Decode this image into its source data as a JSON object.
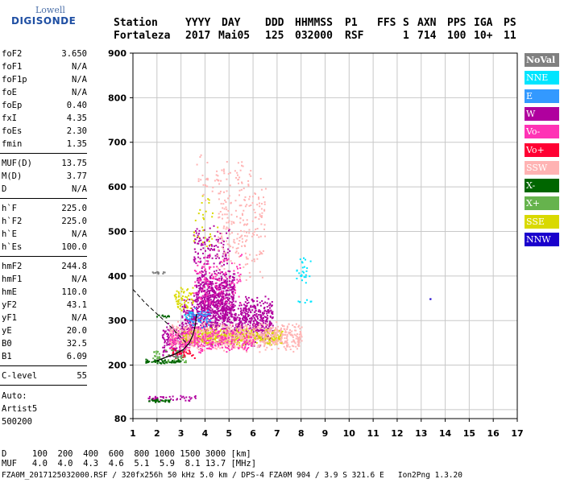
{
  "brand": {
    "line1": "Lowell",
    "line2": "DIGISONDE"
  },
  "header": {
    "labels": [
      "Station",
      "YYYY",
      "DAY",
      "DDD",
      "HHMMSS",
      "P1",
      "FFS",
      "S",
      "AXN",
      "PPS",
      "IGA",
      "PS"
    ],
    "values": [
      "Fortaleza",
      "2017",
      "Mai05",
      "125",
      "032000",
      "RSF",
      "",
      "1",
      "714",
      "100",
      "10+",
      "11"
    ]
  },
  "params": [
    {
      "k": "foF2",
      "v": "3.650"
    },
    {
      "k": "foF1",
      "v": "N/A"
    },
    {
      "k": "foF1p",
      "v": "N/A"
    },
    {
      "k": "foE",
      "v": "N/A"
    },
    {
      "k": "foEp",
      "v": "0.40"
    },
    {
      "k": "fxI",
      "v": "4.35"
    },
    {
      "k": "foEs",
      "v": "2.30"
    },
    {
      "k": "fmin",
      "v": "1.35"
    },
    {
      "k": "MUF(D)",
      "v": "13.75"
    },
    {
      "k": "M(D)",
      "v": "3.77"
    },
    {
      "k": "D",
      "v": "N/A"
    },
    {
      "k": "h`F",
      "v": "225.0"
    },
    {
      "k": "h`F2",
      "v": "225.0"
    },
    {
      "k": "h`E",
      "v": "N/A"
    },
    {
      "k": "h`Es",
      "v": "100.0"
    },
    {
      "k": "hmF2",
      "v": "244.8"
    },
    {
      "k": "hmF1",
      "v": "N/A"
    },
    {
      "k": "hmE",
      "v": "110.0"
    },
    {
      "k": "yF2",
      "v": "43.1"
    },
    {
      "k": "yF1",
      "v": "N/A"
    },
    {
      "k": "yE",
      "v": "20.0"
    },
    {
      "k": "B0",
      "v": "32.5"
    },
    {
      "k": "B1",
      "v": "6.09"
    },
    {
      "k": "C-level",
      "v": "55"
    }
  ],
  "auto": [
    "Auto:",
    "Artist5",
    "500200"
  ],
  "legend": [
    {
      "label": "NoVal",
      "bg": "#808080",
      "fg": "#ffffff"
    },
    {
      "label": "NNE",
      "bg": "#00e5ff",
      "fg": "#ffffff"
    },
    {
      "label": "E",
      "bg": "#3399ff",
      "fg": "#ffffff"
    },
    {
      "label": "W",
      "bg": "#b0009e",
      "fg": "#ffffff"
    },
    {
      "label": "Vo-",
      "bg": "#ff33b5",
      "fg": "#ffffff"
    },
    {
      "label": "Vo+",
      "bg": "#ff0033",
      "fg": "#ffffff"
    },
    {
      "label": "SSW",
      "bg": "#ffb3b3",
      "fg": "#ffffff"
    },
    {
      "label": "X-",
      "bg": "#006600",
      "fg": "#ffffff"
    },
    {
      "label": "X+",
      "bg": "#66b34d",
      "fg": "#ffffff"
    },
    {
      "label": "SSE",
      "bg": "#d9d900",
      "fg": "#ffffff"
    },
    {
      "label": "NNW",
      "bg": "#1a00cc",
      "fg": "#ffffff"
    }
  ],
  "bottom": {
    "d_row": "D     100  200  400  600  800 1000 1500 3000 [km]",
    "muf_row": "MUF   4.0  4.0  4.3  4.6  5.1  5.9  8.1 13.7 [MHz]",
    "footer": "FZA0M_2017125032000.RSF / 320fx256h 50 kHz 5.0 km / DPS-4 FZA0M 904 / 3.9 S 321.6 E   Ion2Png 1.3.20"
  },
  "chart_data": {
    "type": "scatter",
    "title": "",
    "xlabel": "",
    "ylabel": "",
    "xlim": [
      1,
      17
    ],
    "ylim": [
      80,
      900
    ],
    "x_ticks": [
      1,
      2,
      3,
      4,
      5,
      6,
      7,
      8,
      9,
      10,
      11,
      12,
      13,
      14,
      15,
      16,
      17
    ],
    "y_ticks": [
      80,
      200,
      300,
      400,
      500,
      600,
      700,
      800,
      900
    ],
    "grid": true,
    "legend_position": "right",
    "series": [
      {
        "name": "W",
        "color": "#b0009e",
        "clusters": [
          {
            "x": [
              3.0,
              6.8
            ],
            "y": [
              240,
              360
            ],
            "n": 900
          },
          {
            "x": [
              3.6,
              5.2
            ],
            "y": [
              300,
              420
            ],
            "n": 500
          },
          {
            "x": [
              2.2,
              3.2
            ],
            "y": [
              215,
              300
            ],
            "n": 150
          },
          {
            "x": [
              3.5,
              5.0
            ],
            "y": [
              400,
              520
            ],
            "n": 120
          },
          {
            "x": [
              1.6,
              3.6
            ],
            "y": [
              120,
              135
            ],
            "n": 40
          }
        ]
      },
      {
        "name": "SSE",
        "color": "#d9d900",
        "clusters": [
          {
            "x": [
              3.0,
              7.2
            ],
            "y": [
              245,
              285
            ],
            "n": 500
          },
          {
            "x": [
              2.7,
              3.5
            ],
            "y": [
              320,
              380
            ],
            "n": 60
          },
          {
            "x": [
              3.5,
              4.5
            ],
            "y": [
              450,
              600
            ],
            "n": 30
          }
        ]
      },
      {
        "name": "SSW",
        "color": "#ffb3b3",
        "clusters": [
          {
            "x": [
              2.5,
              8.0
            ],
            "y": [
              230,
              300
            ],
            "n": 700
          },
          {
            "x": [
              4.5,
              6.5
            ],
            "y": [
              380,
              640
            ],
            "n": 200
          },
          {
            "x": [
              3.5,
              6.0
            ],
            "y": [
              560,
              680
            ],
            "n": 60
          }
        ]
      },
      {
        "name": "Vo-",
        "color": "#ff33b5",
        "clusters": [
          {
            "x": [
              2.5,
              6.0
            ],
            "y": [
              225,
              290
            ],
            "n": 250
          },
          {
            "x": [
              3.5,
              5.5
            ],
            "y": [
              320,
              460
            ],
            "n": 120
          }
        ]
      },
      {
        "name": "E",
        "color": "#3399ff",
        "clusters": [
          {
            "x": [
              3.3,
              4.2
            ],
            "y": [
              280,
              335
            ],
            "n": 60
          }
        ]
      },
      {
        "name": "NNE",
        "color": "#00e5ff",
        "clusters": [
          {
            "x": [
              7.7,
              8.4
            ],
            "y": [
              380,
              450
            ],
            "n": 25
          },
          {
            "x": [
              7.5,
              8.5
            ],
            "y": [
              340,
              350
            ],
            "n": 8
          },
          {
            "x": [
              3.1,
              3.5
            ],
            "y": [
              300,
              330
            ],
            "n": 8
          }
        ]
      },
      {
        "name": "X-",
        "color": "#006600",
        "clusters": [
          {
            "x": [
              1.5,
              3.0
            ],
            "y": [
              205,
              215
            ],
            "n": 60
          },
          {
            "x": [
              1.6,
              2.6
            ],
            "y": [
              118,
              126
            ],
            "n": 30
          },
          {
            "x": [
              1.9,
              2.5
            ],
            "y": [
              308,
              315
            ],
            "n": 10
          }
        ]
      },
      {
        "name": "X+",
        "color": "#66b34d",
        "clusters": [
          {
            "x": [
              1.8,
              3.2
            ],
            "y": [
              205,
              240
            ],
            "n": 50
          }
        ]
      },
      {
        "name": "Vo+",
        "color": "#ff0033",
        "clusters": [
          {
            "x": [
              2.6,
              3.6
            ],
            "y": [
              215,
              240
            ],
            "n": 30
          }
        ]
      },
      {
        "name": "NoVal",
        "color": "#808080",
        "clusters": [
          {
            "x": [
              1.7,
              2.3
            ],
            "y": [
              405,
              412
            ],
            "n": 12
          },
          {
            "x": [
              2.5,
              3.0
            ],
            "y": [
              218,
              225
            ],
            "n": 10
          }
        ]
      },
      {
        "name": "NNW",
        "color": "#1a00cc",
        "clusters": [
          {
            "x": [
              13.3,
              13.4
            ],
            "y": [
              349,
              351
            ],
            "n": 2
          }
        ]
      }
    ],
    "profile_curve": {
      "x": [
        2.0,
        2.4,
        2.8,
        3.1,
        3.35,
        3.5,
        3.6,
        3.65
      ],
      "y": [
        210,
        218,
        226,
        235,
        250,
        268,
        290,
        315
      ]
    },
    "dashed_curve": {
      "x": [
        1.0,
        1.5,
        2.0,
        2.5,
        3.0,
        3.3
      ],
      "y": [
        370,
        340,
        315,
        290,
        262,
        245
      ]
    }
  }
}
